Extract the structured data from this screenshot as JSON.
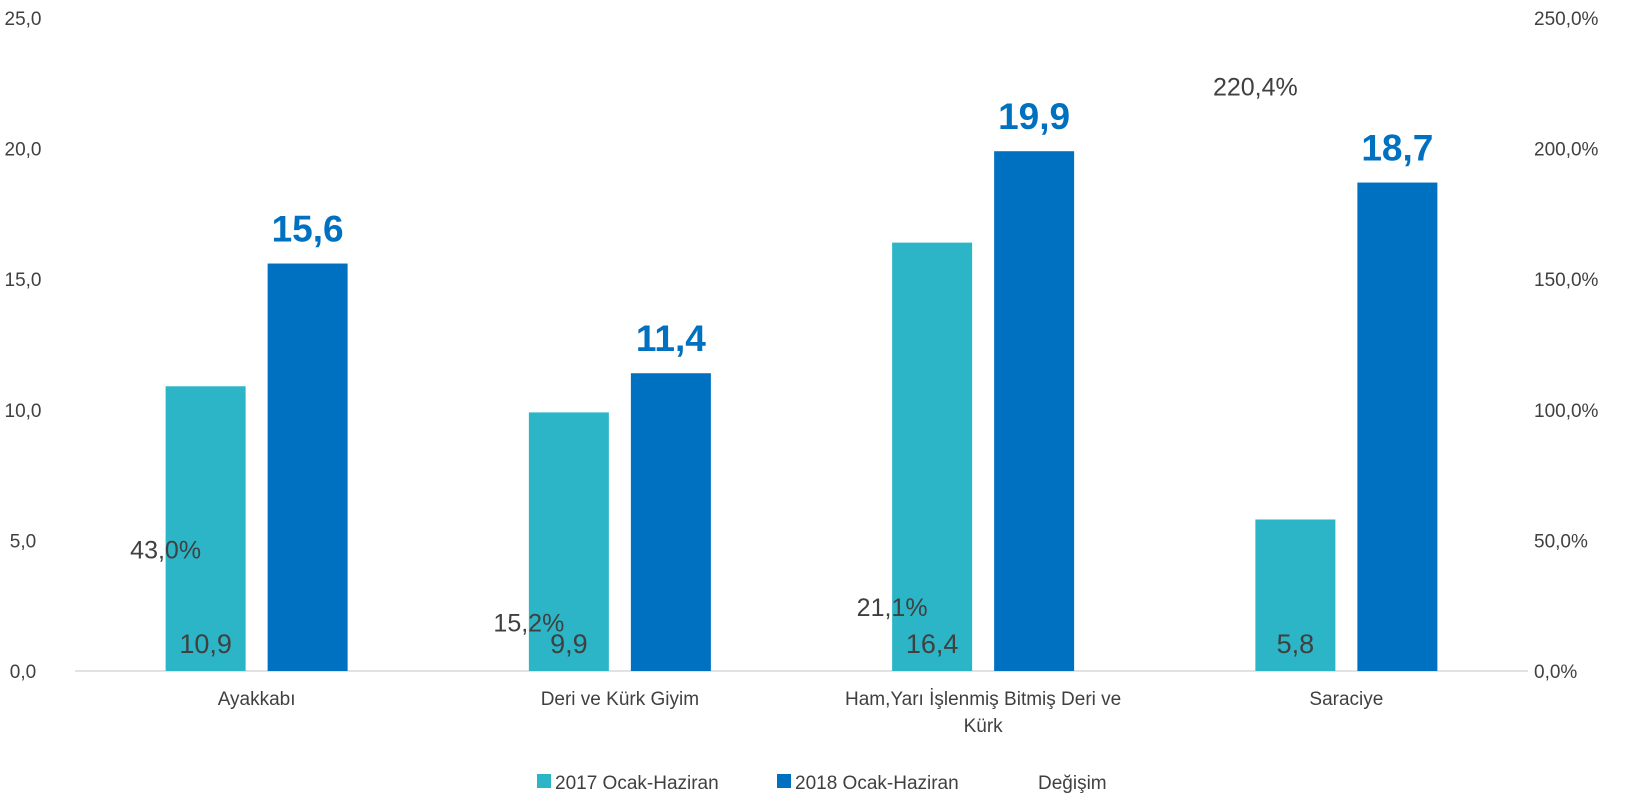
{
  "chart_data": {
    "type": "bar",
    "categories": [
      [
        "Ayakkabı"
      ],
      [
        "Deri ve Kürk Giyim"
      ],
      [
        "Ham,Yarı İşlenmiş Bitmiş Deri ve",
        "Kürk"
      ],
      [
        "Saraciye"
      ]
    ],
    "series": [
      {
        "name": "2017 Ocak-Haziran",
        "values": [
          10.9,
          9.9,
          16.4,
          5.8
        ],
        "labels": [
          "10,9",
          "9,9",
          "16,4",
          "5,8"
        ],
        "color": "#2bb5c6"
      },
      {
        "name": "2018 Ocak-Haziran",
        "values": [
          15.6,
          11.4,
          19.9,
          18.7
        ],
        "labels": [
          "15,6",
          "11,4",
          "19,9",
          "18,7"
        ],
        "color": "#0070c0"
      },
      {
        "name": "Değişim",
        "axis": "secondary",
        "values": [
          43.0,
          15.2,
          21.1,
          220.4
        ],
        "labels": [
          "43,0%",
          "15,2%",
          "21,1%",
          "220,4%"
        ]
      }
    ],
    "ylim": [
      0,
      25
    ],
    "yticks": [
      "0,0",
      "5,0",
      "10,0",
      "15,0",
      "20,0",
      "25,0"
    ],
    "y2lim": [
      0,
      250
    ],
    "y2ticks": [
      "0,0%",
      "50,0%",
      "100,0%",
      "150,0%",
      "200,0%",
      "250,0%"
    ],
    "grid": false,
    "legend": "bottom-center"
  }
}
